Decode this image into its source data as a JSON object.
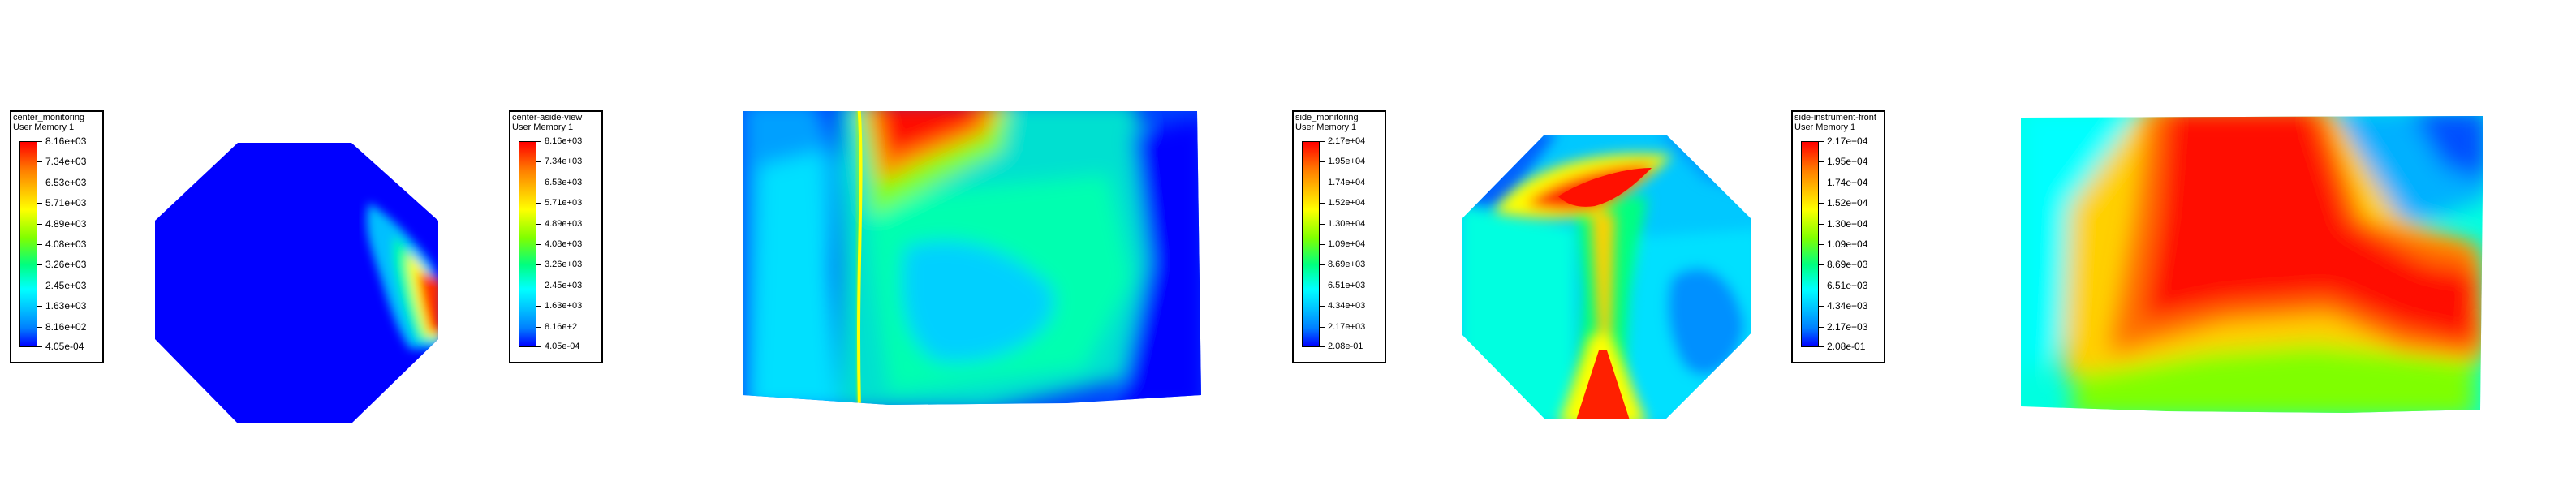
{
  "panels": [
    {
      "title": "center_monitoring",
      "quantity": "User Memory 1",
      "labels": [
        "8.16e+03",
        "7.34e+03",
        "6.53e+03",
        "5.71e+03",
        "4.89e+03",
        "4.08e+03",
        "3.26e+03",
        "2.45e+03",
        "1.63e+03",
        "8.16e+02",
        "4.05e-04"
      ]
    },
    {
      "title": "center-aside-view",
      "quantity": "User Memory 1",
      "labels": [
        "8.16e+03",
        "7.34e+03",
        "6.53e+03",
        "5.71e+03",
        "4.89e+03",
        "4.08e+03",
        "3.26e+03",
        "2.45e+03",
        "1.63e+03",
        "8.16e+2",
        "4.05e-04"
      ]
    },
    {
      "title": "side_monitoring",
      "quantity": "User Memory 1",
      "labels": [
        "2.17e+04",
        "1.95e+04",
        "1.74e+04",
        "1.52e+04",
        "1.30e+04",
        "1.09e+04",
        "8.69e+03",
        "6.51e+03",
        "4.34e+03",
        "2.17e+03",
        "2.08e-01"
      ]
    },
    {
      "title": "side-instrument-front",
      "quantity": "User Memory 1",
      "labels": [
        "2.17e+04",
        "1.95e+04",
        "1.74e+04",
        "1.52e+04",
        "1.30e+04",
        "1.09e+04",
        "8.69e+03",
        "6.51e+03",
        "4.34e+03",
        "2.17e+03",
        "2.08e-01"
      ]
    }
  ],
  "colormap": [
    "#ff0000",
    "#ffff00",
    "#00ff00",
    "#00ffff",
    "#0000ff"
  ]
}
